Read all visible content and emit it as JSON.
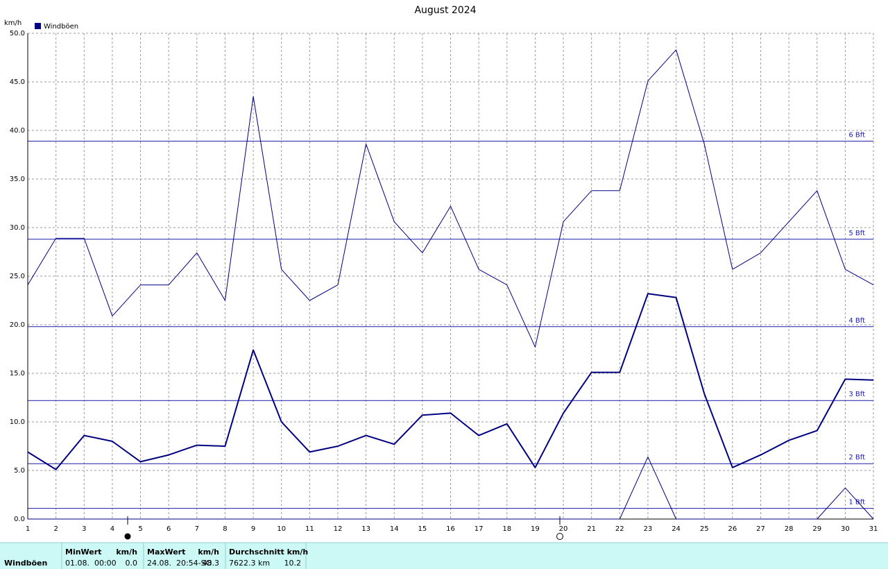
{
  "chart_data": {
    "type": "line",
    "title": "August 2024",
    "y_label": "km/h",
    "x": [
      1,
      2,
      3,
      4,
      5,
      6,
      7,
      8,
      9,
      10,
      11,
      12,
      13,
      14,
      15,
      16,
      17,
      18,
      19,
      20,
      21,
      22,
      23,
      24,
      25,
      26,
      27,
      28,
      29,
      30,
      31
    ],
    "xlim": [
      1,
      31
    ],
    "xticks": [
      1,
      2,
      3,
      4,
      5,
      6,
      7,
      8,
      9,
      10,
      11,
      12,
      13,
      14,
      15,
      16,
      17,
      18,
      19,
      20,
      21,
      22,
      23,
      24,
      25,
      26,
      27,
      28,
      29,
      30,
      31
    ],
    "ylim": [
      0,
      50
    ],
    "yticks": [
      {
        "value": 0,
        "label": "0.0"
      },
      {
        "value": 5,
        "label": "5.0"
      },
      {
        "value": 10,
        "label": "10.0"
      },
      {
        "value": 15,
        "label": "15.0"
      },
      {
        "value": 20,
        "label": "20.0"
      },
      {
        "value": 25,
        "label": "25.0"
      },
      {
        "value": 30,
        "label": "30.0"
      },
      {
        "value": 35,
        "label": "35.0"
      },
      {
        "value": 40,
        "label": "40.0"
      },
      {
        "value": 45,
        "label": "45.0"
      },
      {
        "value": 50,
        "label": "50.0"
      }
    ],
    "grid": true,
    "series": [
      {
        "name": "Windböen",
        "color": "#000080",
        "width": 2,
        "values": [
          6.9,
          5.1,
          8.6,
          8.0,
          5.9,
          6.6,
          7.6,
          7.5,
          17.4,
          10.0,
          6.9,
          7.5,
          8.6,
          7.7,
          10.7,
          10.9,
          8.6,
          9.8,
          5.3,
          10.9,
          15.1,
          15.1,
          23.2,
          22.8,
          12.9,
          5.3,
          6.6,
          8.1,
          9.1,
          14.4,
          14.3
        ]
      },
      {
        "color": "#000080",
        "width": 1,
        "values": [
          24.1,
          28.9,
          28.9,
          20.9,
          24.1,
          24.1,
          27.4,
          22.5,
          43.5,
          25.7,
          22.5,
          24.1,
          38.6,
          30.6,
          27.4,
          32.2,
          25.7,
          24.1,
          17.7,
          30.6,
          33.8,
          33.8,
          45.1,
          48.3,
          38.6,
          25.7,
          27.4,
          30.6,
          33.8,
          25.7,
          24.1
        ]
      },
      {
        "color": "#000080",
        "width": 1,
        "values": [
          0,
          0,
          0,
          0,
          0,
          0,
          0,
          0,
          0,
          0,
          0,
          0,
          0,
          0,
          0,
          0,
          0,
          0,
          0,
          0,
          0,
          0,
          6.4,
          0,
          0,
          0,
          0,
          0,
          0,
          3.2,
          0
        ]
      }
    ],
    "ref_lines": [
      {
        "value": 1.1,
        "label": "1 Bft"
      },
      {
        "value": 5.7,
        "label": "2 Bft"
      },
      {
        "value": 12.2,
        "label": "3 Bft"
      },
      {
        "value": 19.8,
        "label": "4 Bft"
      },
      {
        "value": 28.8,
        "label": "5 Bft"
      },
      {
        "value": 38.9,
        "label": "6 Bft"
      }
    ],
    "ref_color": "#1c1ca8"
  },
  "footer": {
    "row_label": "Windböen",
    "groups": [
      {
        "title": "MinWert",
        "unit": "km/h",
        "time": "01.08.  00:00",
        "value": "0.0"
      },
      {
        "title": "MaxWert",
        "unit": "km/h",
        "time": "24.08.  20:54-SO",
        "value": "48.3"
      },
      {
        "title": "Durchschnitt km/h",
        "time": "7622.3 km",
        "value": "10.2"
      }
    ]
  }
}
